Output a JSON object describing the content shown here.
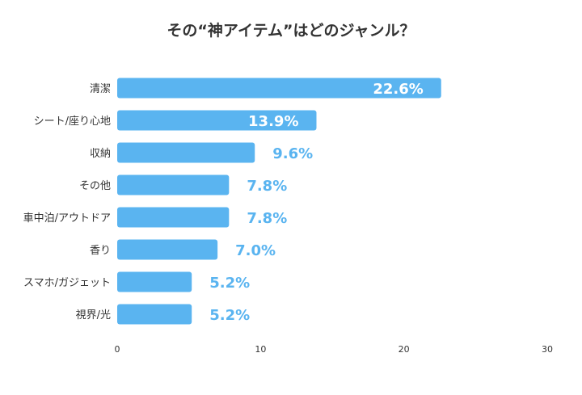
{
  "chart_data": {
    "type": "bar",
    "orientation": "horizontal",
    "title": "その“神アイテム”はどのジャンル？",
    "categories": [
      "清潔",
      "シート/座り心地",
      "収納",
      "その他",
      "車中泊/アウトドア",
      "香り",
      "スマホ/ガジェット",
      "視界/光"
    ],
    "values": [
      22.6,
      13.9,
      9.6,
      7.8,
      7.8,
      7.0,
      5.2,
      5.2
    ],
    "value_labels": [
      "22.6%",
      "13.9%",
      "9.6%",
      "7.8%",
      "7.8%",
      "7.0%",
      "5.2%",
      "5.2%"
    ],
    "xlim": [
      0,
      30
    ],
    "xticks": [
      "0",
      "10",
      "20",
      "30"
    ],
    "xlabel": "",
    "ylabel": "",
    "grid": false,
    "colors": {
      "bar": "#5ab4f0",
      "label_outside": "#5ab4f0",
      "label_inside": "#ffffff",
      "title": "#333333"
    }
  }
}
